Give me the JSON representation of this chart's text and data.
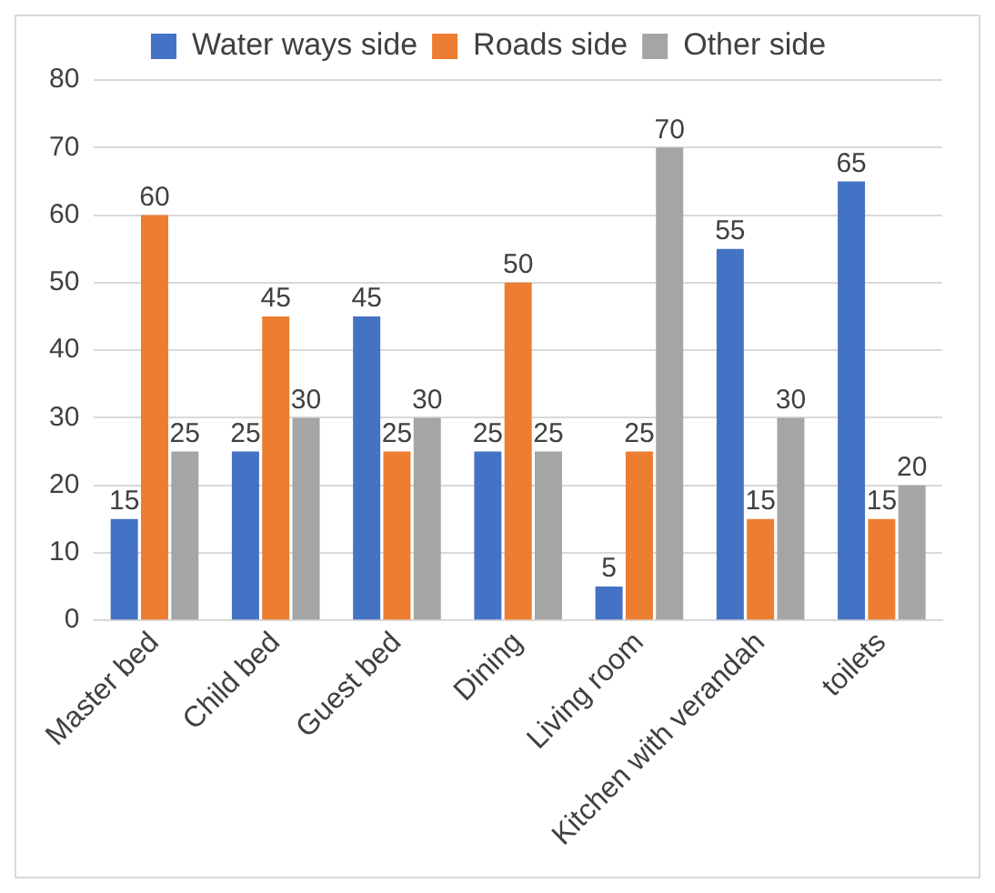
{
  "chart_data": {
    "type": "bar",
    "categories": [
      "Master bed",
      "Child bed",
      "Guest bed",
      "Dining",
      "Living room",
      "Kitchen with verandah",
      "toilets"
    ],
    "series": [
      {
        "name": "Water ways side",
        "color": "#4472c4",
        "values": [
          15,
          25,
          45,
          25,
          5,
          55,
          65
        ]
      },
      {
        "name": "Roads side",
        "color": "#ed7d31",
        "values": [
          60,
          45,
          25,
          50,
          25,
          15,
          15
        ]
      },
      {
        "name": "Other side",
        "color": "#a5a5a5",
        "values": [
          25,
          30,
          30,
          25,
          70,
          30,
          20
        ]
      }
    ],
    "ylim": [
      0,
      80
    ],
    "yticks": [
      0,
      10,
      20,
      30,
      40,
      50,
      60,
      70,
      80
    ],
    "grid": "y",
    "legend": "top",
    "data_labels": true
  }
}
